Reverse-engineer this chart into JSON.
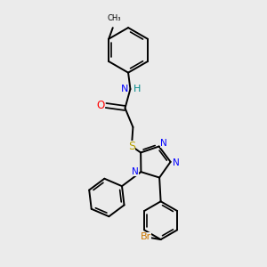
{
  "background_color": "#ebebeb",
  "bond_color": "#000000",
  "atom_colors": {
    "N": "#0000ff",
    "O": "#ff0000",
    "S": "#b8a000",
    "Br": "#cc7700",
    "H": "#008888",
    "C": "#000000"
  },
  "figsize": [
    3.0,
    3.0
  ],
  "dpi": 100
}
